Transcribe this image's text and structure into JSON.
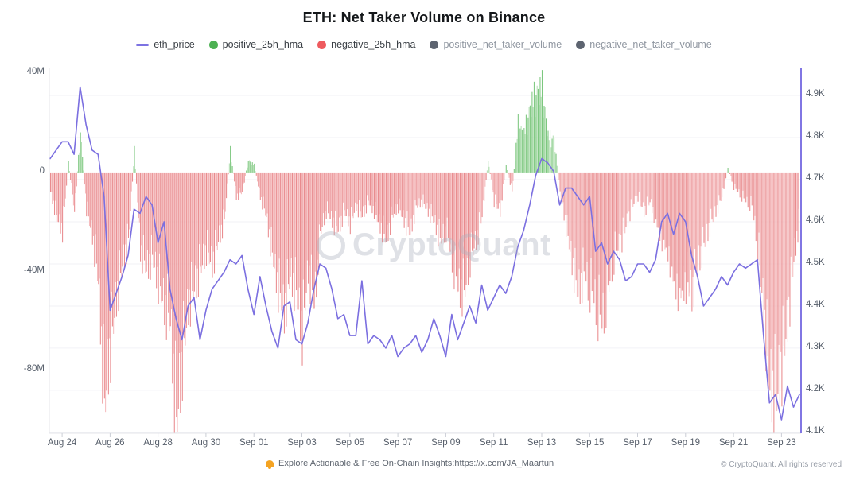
{
  "title": "ETH: Net Taker Volume on Binance",
  "legend": [
    {
      "label": "eth_price",
      "marker": "line",
      "color": "#7c72e2",
      "disabled": false
    },
    {
      "label": "positive_25h_hma",
      "marker": "dot",
      "color": "#4db153",
      "disabled": false
    },
    {
      "label": "negative_25h_hma",
      "marker": "dot",
      "color": "#ee5a5e",
      "disabled": false
    },
    {
      "label": "positive_net_taker_volume",
      "marker": "dot",
      "color": "#5d6470",
      "disabled": true
    },
    {
      "label": "negative_net_taker_volume",
      "marker": "dot",
      "color": "#5d6470",
      "disabled": true
    }
  ],
  "watermark": "CryptoQuant",
  "footer": {
    "promo_prefix": "Explore Actionable & Free On-Chain Insights: ",
    "promo_link": "https://x.com/JA_Maartun",
    "copyright": "© CryptoQuant. All rights reserved"
  },
  "chart_data": {
    "type": "mixed",
    "title": "ETH: Net Taker Volume on Binance",
    "legend_position": "top",
    "grid": "horizontal",
    "x_axis": {
      "labels": [
        "Aug 24",
        "Aug 26",
        "Aug 28",
        "Aug 30",
        "Sep 01",
        "Sep 03",
        "Sep 05",
        "Sep 07",
        "Sep 09",
        "Sep 11",
        "Sep 13",
        "Sep 15",
        "Sep 17",
        "Sep 19",
        "Sep 21",
        "Sep 23"
      ],
      "tick_interval_days": 2,
      "start_day": -0.5,
      "step_days": 0.25
    },
    "left_axis": {
      "series": "net_taker_volume_25h_hma",
      "tick_labels": [
        "40M",
        "0",
        "-40M",
        "-80M"
      ],
      "tick_values": [
        40,
        0,
        -40,
        -80
      ],
      "range": [
        -105.2,
        42.3
      ]
    },
    "right_axis": {
      "series": "eth_price",
      "tick_labels": [
        "4.9K",
        "4.8K",
        "4.7K",
        "4.6K",
        "4.5K",
        "4.4K",
        "4.3K",
        "4.2K",
        "4.1K"
      ],
      "tick_values": [
        4.9,
        4.8,
        4.7,
        4.6,
        4.5,
        4.4,
        4.3,
        4.2,
        4.1
      ],
      "range": [
        4.098,
        4.966
      ]
    },
    "series": [
      {
        "name": "net_taker_volume_25h_hma",
        "type": "bar",
        "axis": "left",
        "unit": "M",
        "positive_color": "#7cc77e",
        "positive_color_light": "#b5e0b5",
        "negative_color": "#e98b8e",
        "negative_color_light": "#f5bdbf",
        "values": [
          -8,
          -18,
          -24,
          4,
          -16,
          17,
          -15,
          -26,
          -45,
          -96,
          -72,
          -52,
          -38,
          -28,
          9,
          -32,
          -40,
          -35,
          -45,
          -55,
          -62,
          -104,
          -78,
          -55,
          -48,
          -40,
          -32,
          -38,
          -28,
          -20,
          9,
          -10,
          -8,
          5,
          3,
          -10,
          -18,
          -34,
          -48,
          -58,
          -42,
          -50,
          -66,
          -40,
          -55,
          -25,
          -16,
          -20,
          -24,
          -16,
          -21,
          -14,
          -18,
          -12,
          -16,
          -22,
          -28,
          -18,
          -14,
          -20,
          -25,
          -14,
          -12,
          -16,
          -20,
          -28,
          -24,
          -36,
          -48,
          -50,
          -36,
          -28,
          -18,
          5,
          -12,
          -16,
          3,
          -8,
          20,
          16,
          27,
          33,
          35,
          15,
          14,
          -8,
          -22,
          -37,
          -50,
          -42,
          -48,
          -55,
          -63,
          -48,
          -35,
          -30,
          -22,
          -14,
          -10,
          -16,
          -12,
          -20,
          -27,
          -32,
          -44,
          -49,
          -45,
          -50,
          -38,
          -30,
          -22,
          -16,
          -10,
          2,
          -6,
          -9,
          -12,
          -14,
          -30,
          -58,
          -88,
          -94,
          -80,
          -61,
          -36,
          -18
        ]
      },
      {
        "name": "eth_price",
        "type": "line",
        "axis": "right",
        "unit": "K",
        "color": "#7b6fe0",
        "values": [
          4.75,
          4.77,
          4.79,
          4.79,
          4.76,
          4.92,
          4.83,
          4.77,
          4.76,
          4.66,
          4.39,
          4.43,
          4.47,
          4.52,
          4.63,
          4.62,
          4.66,
          4.64,
          4.55,
          4.6,
          4.44,
          4.37,
          4.32,
          4.4,
          4.42,
          4.32,
          4.39,
          4.44,
          4.46,
          4.48,
          4.51,
          4.5,
          4.52,
          4.44,
          4.38,
          4.47,
          4.4,
          4.34,
          4.3,
          4.4,
          4.41,
          4.32,
          4.31,
          4.36,
          4.44,
          4.5,
          4.49,
          4.44,
          4.37,
          4.38,
          4.33,
          4.33,
          4.46,
          4.31,
          4.33,
          4.32,
          4.3,
          4.33,
          4.28,
          4.3,
          4.31,
          4.33,
          4.29,
          4.32,
          4.37,
          4.33,
          4.28,
          4.38,
          4.32,
          4.36,
          4.4,
          4.36,
          4.45,
          4.39,
          4.42,
          4.45,
          4.43,
          4.47,
          4.54,
          4.58,
          4.64,
          4.71,
          4.75,
          4.74,
          4.72,
          4.64,
          4.68,
          4.68,
          4.66,
          4.64,
          4.66,
          4.53,
          4.55,
          4.5,
          4.53,
          4.51,
          4.46,
          4.47,
          4.5,
          4.5,
          4.48,
          4.51,
          4.6,
          4.62,
          4.57,
          4.62,
          4.6,
          4.52,
          4.47,
          4.4,
          4.42,
          4.44,
          4.47,
          4.45,
          4.48,
          4.5,
          4.49,
          4.5,
          4.51,
          4.33,
          4.17,
          4.19,
          4.13,
          4.21,
          4.16,
          4.19
        ]
      },
      {
        "name": "positive_net_taker_volume",
        "type": "bar",
        "hidden": true
      },
      {
        "name": "negative_net_taker_volume",
        "type": "bar",
        "hidden": true
      }
    ]
  }
}
